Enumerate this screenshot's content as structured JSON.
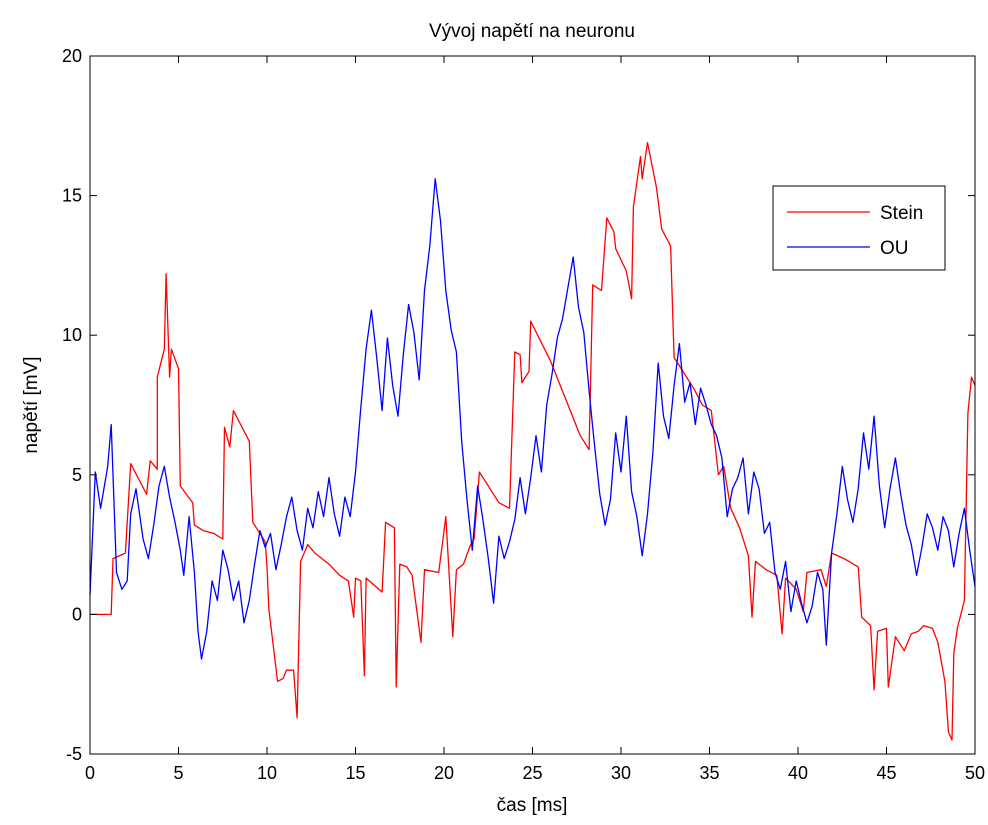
{
  "chart_data": {
    "type": "line",
    "title": "Vývoj napětí na neuronu",
    "xlabel": "čas [ms]",
    "ylabel": "napětí [mV]",
    "xlim": [
      0,
      50
    ],
    "ylim": [
      -5,
      20
    ],
    "x_ticks": [
      "0",
      "5",
      "10",
      "15",
      "20",
      "25",
      "30",
      "35",
      "40",
      "45",
      "50"
    ],
    "y_ticks": [
      "-5",
      "0",
      "5",
      "10",
      "15",
      "20"
    ],
    "grid": false,
    "legend_position": "top-right",
    "series": [
      {
        "name": "Stein",
        "color": "#ff0000",
        "points": [
          [
            0,
            0
          ],
          [
            1.2,
            0
          ],
          [
            1.3,
            2
          ],
          [
            2,
            2.2
          ],
          [
            2.3,
            5.4
          ],
          [
            3.2,
            4.3
          ],
          [
            3.4,
            5.5
          ],
          [
            3.8,
            5.2
          ],
          [
            3.8,
            8.5
          ],
          [
            4.2,
            9.5
          ],
          [
            4.3,
            12.2
          ],
          [
            4.5,
            8.5
          ],
          [
            4.6,
            9.5
          ],
          [
            5,
            8.8
          ],
          [
            5.1,
            4.6
          ],
          [
            5.8,
            4
          ],
          [
            5.9,
            3.2
          ],
          [
            6.4,
            3
          ],
          [
            7,
            2.9
          ],
          [
            7.5,
            2.7
          ],
          [
            7.6,
            6.7
          ],
          [
            7.9,
            6
          ],
          [
            8.1,
            7.3
          ],
          [
            9,
            6.2
          ],
          [
            9.2,
            3.3
          ],
          [
            9.9,
            2.6
          ],
          [
            10,
            1.7
          ],
          [
            10.1,
            0.2
          ],
          [
            10.6,
            -2.4
          ],
          [
            10.9,
            -2.3
          ],
          [
            11.1,
            -2
          ],
          [
            11.5,
            -2
          ],
          [
            11.7,
            -3.7
          ],
          [
            11.9,
            1.9
          ],
          [
            12.3,
            2.5
          ],
          [
            12.7,
            2.2
          ],
          [
            13.5,
            1.8
          ],
          [
            14.1,
            1.4
          ],
          [
            14.6,
            1.2
          ],
          [
            14.9,
            -0.1
          ],
          [
            15,
            1.3
          ],
          [
            15.3,
            1.2
          ],
          [
            15.5,
            -2.2
          ],
          [
            15.6,
            1.3
          ],
          [
            16.5,
            0.8
          ],
          [
            16.7,
            3.3
          ],
          [
            17.2,
            3.1
          ],
          [
            17.3,
            -2.6
          ],
          [
            17.5,
            1.8
          ],
          [
            17.9,
            1.7
          ],
          [
            18.2,
            1.4
          ],
          [
            18.7,
            -1
          ],
          [
            18.9,
            1.6
          ],
          [
            19.7,
            1.5
          ],
          [
            20.1,
            3.5
          ],
          [
            20.5,
            -0.8
          ],
          [
            20.7,
            1.6
          ],
          [
            21.1,
            1.8
          ],
          [
            21.5,
            2.5
          ],
          [
            21.7,
            2.7
          ],
          [
            22,
            5.1
          ],
          [
            23.1,
            4
          ],
          [
            23.7,
            3.8
          ],
          [
            24,
            9.4
          ],
          [
            24.3,
            9.3
          ],
          [
            24.4,
            8.3
          ],
          [
            24.8,
            8.7
          ],
          [
            24.9,
            10.5
          ],
          [
            26,
            9.1
          ],
          [
            27.7,
            6.4
          ],
          [
            28.2,
            5.9
          ],
          [
            28.4,
            11.8
          ],
          [
            28.9,
            11.6
          ],
          [
            29.2,
            14.2
          ],
          [
            29.6,
            13.7
          ],
          [
            29.7,
            13.1
          ],
          [
            30.3,
            12.3
          ],
          [
            30.6,
            11.3
          ],
          [
            30.7,
            14.6
          ],
          [
            31.1,
            16.4
          ],
          [
            31.2,
            15.6
          ],
          [
            31.5,
            16.9
          ],
          [
            32,
            15.3
          ],
          [
            32.3,
            13.8
          ],
          [
            32.8,
            13.2
          ],
          [
            33,
            9.2
          ],
          [
            34.1,
            8.1
          ],
          [
            34.6,
            7.5
          ],
          [
            35.1,
            7.3
          ],
          [
            35.5,
            5
          ],
          [
            35.8,
            5.3
          ],
          [
            36.2,
            3.8
          ],
          [
            36.7,
            3.1
          ],
          [
            37.2,
            2.1
          ],
          [
            37.4,
            -0.1
          ],
          [
            37.6,
            1.9
          ],
          [
            38.2,
            1.6
          ],
          [
            38.8,
            1.4
          ],
          [
            39.1,
            -0.7
          ],
          [
            39.3,
            1.3
          ],
          [
            39.9,
            0.9
          ],
          [
            40.3,
            0.1
          ],
          [
            40.5,
            1.5
          ],
          [
            41.3,
            1.6
          ],
          [
            41.6,
            1
          ],
          [
            41.9,
            2.2
          ],
          [
            42.6,
            2
          ],
          [
            43.4,
            1.7
          ],
          [
            43.6,
            -0.1
          ],
          [
            44.1,
            -0.4
          ],
          [
            44.3,
            -2.7
          ],
          [
            44.5,
            -0.6
          ],
          [
            45,
            -0.5
          ],
          [
            45.1,
            -2.6
          ],
          [
            45.5,
            -0.8
          ],
          [
            46,
            -1.3
          ],
          [
            46.4,
            -0.7
          ],
          [
            46.8,
            -0.6
          ],
          [
            47.1,
            -0.4
          ],
          [
            47.6,
            -0.5
          ],
          [
            47.9,
            -1
          ],
          [
            48.3,
            -2.4
          ],
          [
            48.5,
            -4.2
          ],
          [
            48.7,
            -4.5
          ],
          [
            48.8,
            -1.4
          ],
          [
            49,
            -0.5
          ],
          [
            49.4,
            0.5
          ],
          [
            49.6,
            7.2
          ],
          [
            49.8,
            8.5
          ],
          [
            50,
            8.2
          ]
        ]
      },
      {
        "name": "OU",
        "color": "#0000ff",
        "points": [
          [
            0,
            0.7
          ],
          [
            0.3,
            5.1
          ],
          [
            0.6,
            3.8
          ],
          [
            1,
            5.3
          ],
          [
            1.2,
            6.8
          ],
          [
            1.5,
            1.5
          ],
          [
            1.8,
            0.9
          ],
          [
            2.1,
            1.2
          ],
          [
            2.3,
            3.6
          ],
          [
            2.6,
            4.5
          ],
          [
            3,
            2.7
          ],
          [
            3.3,
            2
          ],
          [
            3.6,
            3.2
          ],
          [
            3.9,
            4.6
          ],
          [
            4.2,
            5.3
          ],
          [
            4.5,
            4.2
          ],
          [
            4.8,
            3.3
          ],
          [
            5.1,
            2.3
          ],
          [
            5.3,
            1.4
          ],
          [
            5.6,
            3.5
          ],
          [
            5.9,
            1.5
          ],
          [
            6.1,
            -0.6
          ],
          [
            6.3,
            -1.6
          ],
          [
            6.6,
            -0.6
          ],
          [
            6.9,
            1.2
          ],
          [
            7.2,
            0.5
          ],
          [
            7.5,
            2.3
          ],
          [
            7.8,
            1.6
          ],
          [
            8.1,
            0.5
          ],
          [
            8.4,
            1.2
          ],
          [
            8.7,
            -0.3
          ],
          [
            9,
            0.5
          ],
          [
            9.3,
            1.8
          ],
          [
            9.6,
            3
          ],
          [
            9.9,
            2.4
          ],
          [
            10.2,
            2.9
          ],
          [
            10.5,
            1.6
          ],
          [
            10.8,
            2.5
          ],
          [
            11.1,
            3.5
          ],
          [
            11.4,
            4.2
          ],
          [
            11.7,
            3
          ],
          [
            12,
            2.3
          ],
          [
            12.3,
            3.8
          ],
          [
            12.6,
            3.1
          ],
          [
            12.9,
            4.4
          ],
          [
            13.2,
            3.5
          ],
          [
            13.5,
            4.9
          ],
          [
            13.8,
            3.6
          ],
          [
            14.1,
            2.8
          ],
          [
            14.4,
            4.2
          ],
          [
            14.7,
            3.5
          ],
          [
            15,
            5.1
          ],
          [
            15.3,
            7.4
          ],
          [
            15.6,
            9.5
          ],
          [
            15.9,
            10.9
          ],
          [
            16.2,
            9.2
          ],
          [
            16.5,
            7.3
          ],
          [
            16.8,
            9.9
          ],
          [
            17.1,
            8.2
          ],
          [
            17.4,
            7.1
          ],
          [
            17.7,
            9.3
          ],
          [
            18,
            11.1
          ],
          [
            18.3,
            10.1
          ],
          [
            18.6,
            8.4
          ],
          [
            18.9,
            11.6
          ],
          [
            19.2,
            13.2
          ],
          [
            19.5,
            15.6
          ],
          [
            19.8,
            14.1
          ],
          [
            20.1,
            11.6
          ],
          [
            20.4,
            10.2
          ],
          [
            20.7,
            9.4
          ],
          [
            21,
            6.2
          ],
          [
            21.3,
            4.1
          ],
          [
            21.6,
            2.3
          ],
          [
            21.9,
            4.6
          ],
          [
            22.2,
            3.4
          ],
          [
            22.5,
            2
          ],
          [
            22.8,
            0.4
          ],
          [
            23.1,
            2.8
          ],
          [
            23.4,
            2
          ],
          [
            23.7,
            2.6
          ],
          [
            24,
            3.4
          ],
          [
            24.3,
            4.9
          ],
          [
            24.6,
            3.6
          ],
          [
            24.9,
            4.9
          ],
          [
            25.2,
            6.4
          ],
          [
            25.5,
            5.1
          ],
          [
            25.8,
            7.5
          ],
          [
            26.1,
            8.6
          ],
          [
            26.4,
            9.9
          ],
          [
            26.7,
            10.6
          ],
          [
            27,
            11.7
          ],
          [
            27.3,
            12.8
          ],
          [
            27.6,
            11
          ],
          [
            27.9,
            10.1
          ],
          [
            28.2,
            8
          ],
          [
            28.5,
            6.1
          ],
          [
            28.8,
            4.3
          ],
          [
            29.1,
            3.2
          ],
          [
            29.4,
            4.1
          ],
          [
            29.7,
            6.5
          ],
          [
            30,
            5.1
          ],
          [
            30.3,
            7.1
          ],
          [
            30.6,
            4.4
          ],
          [
            30.9,
            3.5
          ],
          [
            31.2,
            2.1
          ],
          [
            31.5,
            3.6
          ],
          [
            31.8,
            5.8
          ],
          [
            32.1,
            9
          ],
          [
            32.4,
            7.1
          ],
          [
            32.7,
            6.3
          ],
          [
            33,
            8.2
          ],
          [
            33.3,
            9.7
          ],
          [
            33.6,
            7.6
          ],
          [
            33.9,
            8.3
          ],
          [
            34.2,
            6.8
          ],
          [
            34.5,
            8.1
          ],
          [
            34.8,
            7.5
          ],
          [
            35.1,
            6.8
          ],
          [
            35.4,
            6.4
          ],
          [
            35.7,
            5.6
          ],
          [
            36,
            3.5
          ],
          [
            36.3,
            4.5
          ],
          [
            36.6,
            4.9
          ],
          [
            36.9,
            5.6
          ],
          [
            37.2,
            3.6
          ],
          [
            37.5,
            5.1
          ],
          [
            37.8,
            4.5
          ],
          [
            38.1,
            2.9
          ],
          [
            38.4,
            3.3
          ],
          [
            38.7,
            1.5
          ],
          [
            39,
            0.9
          ],
          [
            39.3,
            1.9
          ],
          [
            39.6,
            0.1
          ],
          [
            39.9,
            1.2
          ],
          [
            40.2,
            0.4
          ],
          [
            40.5,
            -0.3
          ],
          [
            40.8,
            0.3
          ],
          [
            41.1,
            1.5
          ],
          [
            41.4,
            0.9
          ],
          [
            41.6,
            -1.1
          ],
          [
            41.9,
            2.2
          ],
          [
            42.2,
            3.6
          ],
          [
            42.5,
            5.3
          ],
          [
            42.8,
            4.1
          ],
          [
            43.1,
            3.3
          ],
          [
            43.4,
            4.5
          ],
          [
            43.7,
            6.5
          ],
          [
            44,
            5.2
          ],
          [
            44.3,
            7.1
          ],
          [
            44.6,
            4.6
          ],
          [
            44.9,
            3.1
          ],
          [
            45.2,
            4.5
          ],
          [
            45.5,
            5.6
          ],
          [
            45.8,
            4.3
          ],
          [
            46.1,
            3.2
          ],
          [
            46.4,
            2.5
          ],
          [
            46.7,
            1.4
          ],
          [
            47,
            2.4
          ],
          [
            47.3,
            3.6
          ],
          [
            47.6,
            3.1
          ],
          [
            47.9,
            2.3
          ],
          [
            48.2,
            3.5
          ],
          [
            48.5,
            3
          ],
          [
            48.8,
            1.7
          ],
          [
            49.1,
            2.9
          ],
          [
            49.4,
            3.8
          ],
          [
            49.7,
            2.3
          ],
          [
            50,
            1
          ]
        ]
      }
    ]
  }
}
